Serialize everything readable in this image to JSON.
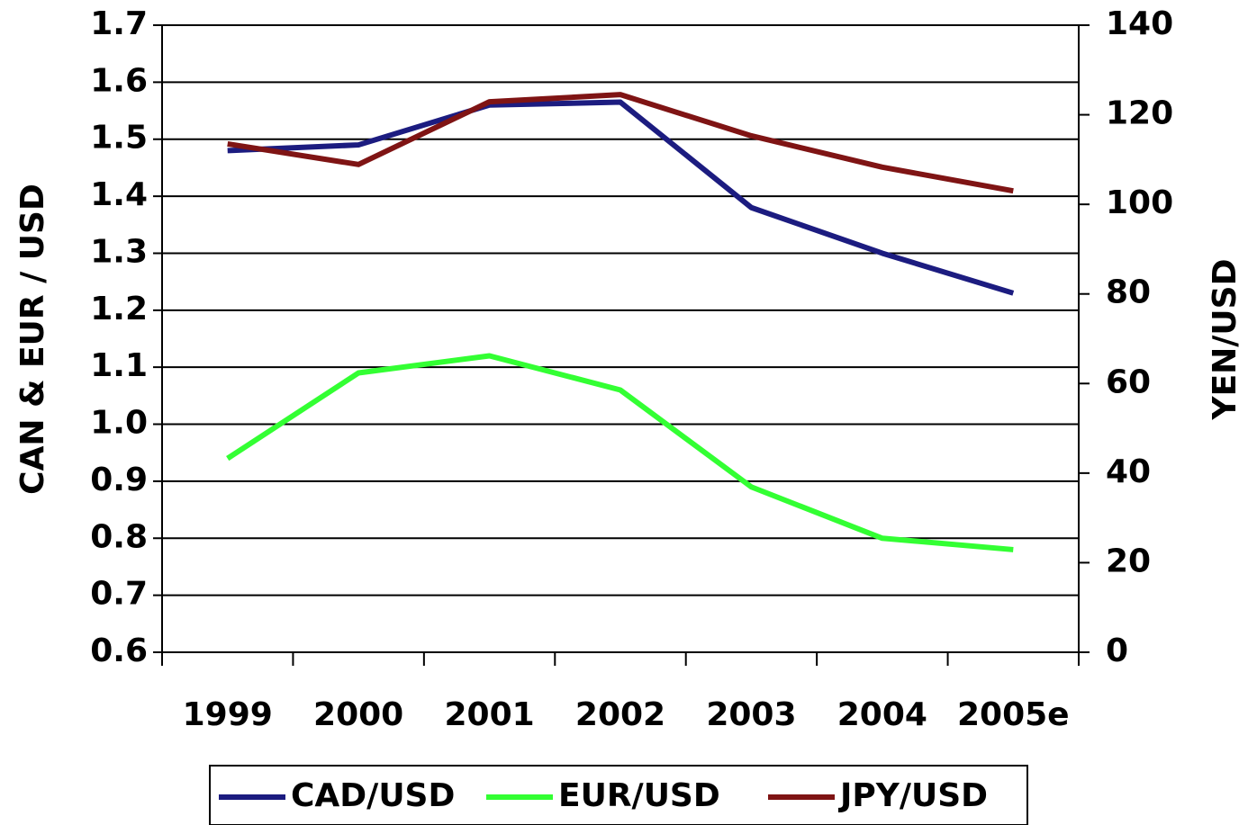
{
  "chart_data": {
    "type": "line",
    "ylabel": "CAN & EUR / USD",
    "y2label": "YEN/USD",
    "categories": [
      "1999",
      "2000",
      "2001",
      "2002",
      "2003",
      "2004",
      "2005e"
    ],
    "ylim": [
      0.6,
      1.7
    ],
    "yticks": [
      1.7,
      1.6,
      1.5,
      1.4,
      1.3,
      1.2,
      1.1,
      {
        "value": 1,
        "label": "1.0"
      },
      0.9,
      0.8,
      0.7,
      0.6
    ],
    "y2lim": [
      0,
      140
    ],
    "y2ticks": [
      0,
      20,
      40,
      60,
      80,
      100,
      120,
      140
    ],
    "grid": true,
    "legend": "bottom",
    "series": [
      {
        "name": "CAD/USD",
        "color": "#1c1c80",
        "values": [
          1.48,
          1.49,
          1.56,
          1.565,
          1.38,
          1.3,
          1.23
        ]
      },
      {
        "name": "EUR/USD",
        "color": "#33ff33",
        "values": [
          0.94,
          1.09,
          1.12,
          1.06,
          0.89,
          0.8,
          0.78
        ]
      },
      {
        "name": "JPY/USD",
        "color": "#7f1414",
        "axis": "y2",
        "values": [
          113.5,
          108.9,
          122.9,
          124.5,
          115.3,
          108.3,
          103
        ]
      }
    ]
  }
}
